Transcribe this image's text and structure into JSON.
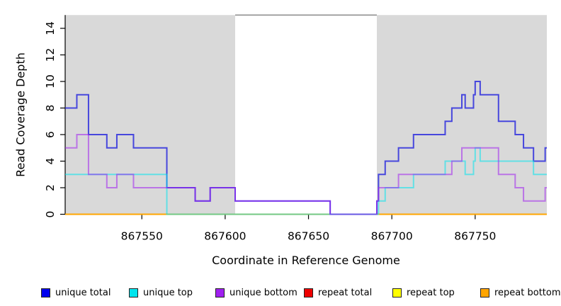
{
  "chart_data": {
    "type": "line",
    "subtype": "step-coverage",
    "title": "",
    "xlabel": "Coordinate in Reference Genome",
    "ylabel": "Read Coverage Depth",
    "x_range": [
      867504,
      867793
    ],
    "ylim": [
      0,
      15
    ],
    "x_ticks": [
      867550,
      867600,
      867650,
      867700,
      867750
    ],
    "x_tick_labels": [
      "867550",
      "867600",
      "867650",
      "867700",
      "867750"
    ],
    "y_ticks": [
      0,
      2,
      4,
      6,
      8,
      10,
      12,
      14
    ],
    "y_tick_labels": [
      "0",
      "2",
      "4",
      "6",
      "8",
      "10",
      "12",
      "14"
    ],
    "grid": false,
    "background_color": "#FFFFFF",
    "band_color": "#D9D9D9",
    "gap_top_border_color": "#8C8C8C",
    "axis_color": "#000000",
    "shaded_regions": [
      {
        "x0": 867504,
        "x1": 867606
      },
      {
        "x0": 867691,
        "x1": 867793
      }
    ],
    "gap_region": {
      "x0": 867606,
      "x1": 867691
    },
    "legend_position": "bottom",
    "series": [
      {
        "label": "unique total",
        "color": "#0000EE",
        "points": [
          [
            867504,
            8
          ],
          [
            867511,
            9
          ],
          [
            867518,
            6
          ],
          [
            867529,
            5
          ],
          [
            867535,
            6
          ],
          [
            867545,
            5
          ],
          [
            867565,
            2
          ],
          [
            867582,
            1
          ],
          [
            867591,
            2
          ],
          [
            867606,
            1
          ],
          [
            867663,
            0
          ],
          [
            867691,
            1
          ],
          [
            867692,
            3
          ],
          [
            867696,
            4
          ],
          [
            867704,
            5
          ],
          [
            867713,
            6
          ],
          [
            867732,
            7
          ],
          [
            867736,
            8
          ],
          [
            867742,
            9
          ],
          [
            867744,
            8
          ],
          [
            867749,
            9
          ],
          [
            867750,
            10
          ],
          [
            867753,
            9
          ],
          [
            867764,
            7
          ],
          [
            867774,
            6
          ],
          [
            867779,
            5
          ],
          [
            867785,
            4
          ],
          [
            867792,
            5
          ],
          [
            867793,
            5
          ]
        ]
      },
      {
        "label": "unique top",
        "color": "#00E5EE",
        "points": [
          [
            867504,
            3
          ],
          [
            867565,
            0
          ],
          [
            867692,
            1
          ],
          [
            867696,
            2
          ],
          [
            867713,
            3
          ],
          [
            867732,
            4
          ],
          [
            867744,
            3
          ],
          [
            867749,
            4
          ],
          [
            867750,
            5
          ],
          [
            867753,
            4
          ],
          [
            867785,
            3
          ],
          [
            867793,
            3
          ]
        ]
      },
      {
        "label": "unique bottom",
        "color": "#A020F0",
        "points": [
          [
            867504,
            5
          ],
          [
            867511,
            6
          ],
          [
            867518,
            3
          ],
          [
            867529,
            2
          ],
          [
            867535,
            3
          ],
          [
            867545,
            2
          ],
          [
            867582,
            1
          ],
          [
            867591,
            2
          ],
          [
            867606,
            1
          ],
          [
            867663,
            0
          ],
          [
            867691,
            1
          ],
          [
            867692,
            2
          ],
          [
            867704,
            3
          ],
          [
            867736,
            4
          ],
          [
            867742,
            5
          ],
          [
            867764,
            3
          ],
          [
            867774,
            2
          ],
          [
            867779,
            1
          ],
          [
            867792,
            2
          ],
          [
            867793,
            2
          ]
        ]
      },
      {
        "label": "repeat total",
        "color": "#EE0000",
        "points": [
          [
            867504,
            0
          ],
          [
            867793,
            0
          ]
        ]
      },
      {
        "label": "repeat top",
        "color": "#FFFF00",
        "points": [
          [
            867504,
            0
          ],
          [
            867793,
            0
          ]
        ]
      },
      {
        "label": "repeat bottom",
        "color": "#FFA500",
        "points": [
          [
            867504,
            0
          ],
          [
            867793,
            0
          ]
        ]
      }
    ]
  }
}
